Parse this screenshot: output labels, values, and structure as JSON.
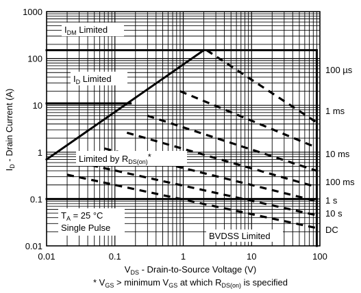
{
  "chart_data": {
    "type": "line",
    "x_scale": "log",
    "y_scale": "log",
    "xlim": [
      0.01,
      100
    ],
    "ylim": [
      0.01,
      1000
    ],
    "grid": true,
    "x_ticks": [
      "0.01",
      "0.1",
      "1",
      "10",
      "100"
    ],
    "y_ticks": [
      "1000",
      "100",
      "10",
      "1",
      "0.1",
      "0.01"
    ],
    "xlabel": {
      "main": "V",
      "sub": "DS",
      "rest": " - Drain-to-Source Voltage (V)"
    },
    "ylabel": {
      "main": "I",
      "sub": "D",
      "rest": " - Drain Current (A)"
    },
    "footnote": {
      "p1": "* V",
      "s1": "GS",
      "p2": " > minimum V",
      "s2": "GS",
      "p3": " at which R",
      "s3": "DS(on)",
      "p4": " is specified"
    },
    "annotations": {
      "idm_limited": {
        "main": "I",
        "sub": "DM",
        "rest": " Limited"
      },
      "id_limited": {
        "main": "I",
        "sub": "D",
        "rest": " Limited"
      },
      "rds_limited": {
        "main": "Limited by R",
        "sub": "DS(on)",
        "rest": "*"
      },
      "ta": {
        "main": "T",
        "sub": "A",
        "rest": " = 25 °C"
      },
      "single_pulse": "Single Pulse",
      "bvdss": "BVDSS Limited"
    },
    "series": [
      {
        "name": "100 µs",
        "points": [
          [
            2.2,
            150
          ],
          [
            90,
            4.3
          ]
        ]
      },
      {
        "name": "1 ms",
        "points": [
          [
            0.9,
            20
          ],
          [
            90,
            1.25
          ]
        ]
      },
      {
        "name": "10 ms",
        "points": [
          [
            0.3,
            6
          ],
          [
            90,
            0.4
          ]
        ]
      },
      {
        "name": "100 ms",
        "points": [
          [
            0.15,
            2.6
          ],
          [
            90,
            0.18
          ]
        ]
      },
      {
        "name": "1 s",
        "points": [
          [
            0.07,
            1.2
          ],
          [
            90,
            0.09
          ]
        ]
      },
      {
        "name": "10 s",
        "points": [
          [
            0.03,
            0.6
          ],
          [
            90,
            0.045
          ]
        ]
      },
      {
        "name": "DC",
        "points": [
          [
            0.02,
            0.33
          ],
          [
            90,
            0.024
          ]
        ]
      }
    ],
    "limit_lines": {
      "rds_on": [
        [
          0.01,
          0.7
        ],
        [
          2.0,
          150
        ]
      ],
      "id_limit": [
        [
          0.01,
          11
        ],
        [
          0.17,
          11
        ]
      ],
      "idm_limit": [
        [
          0.01,
          150
        ],
        [
          90,
          150
        ]
      ],
      "dc_floor": [
        [
          0.01,
          0.1
        ],
        [
          90,
          0.1
        ]
      ],
      "bvdss": [
        [
          90,
          150
        ],
        [
          90,
          0.01
        ]
      ]
    }
  }
}
